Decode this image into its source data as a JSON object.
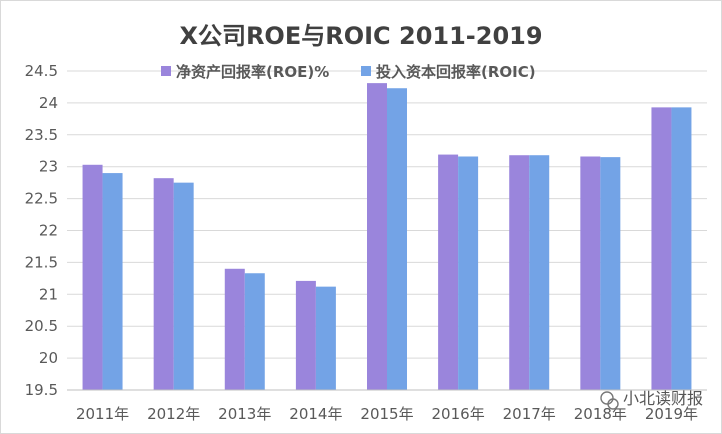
{
  "chart_data": {
    "type": "bar",
    "title": "X公司ROE与ROIC 2011-2019",
    "xlabel": "",
    "ylabel": "",
    "categories": [
      "2011年",
      "2012年",
      "2013年",
      "2014年",
      "2015年",
      "2016年",
      "2017年",
      "2018年",
      "2019年"
    ],
    "series": [
      {
        "name": "净资产回报率(ROE)%",
        "color": "#9a85dc",
        "values": [
          23.03,
          22.82,
          21.4,
          21.21,
          24.31,
          23.19,
          23.18,
          23.16,
          23.93
        ]
      },
      {
        "name": "投入资本回报率(ROIC)",
        "color": "#73a3e6",
        "values": [
          22.9,
          22.75,
          21.33,
          21.12,
          24.23,
          23.16,
          23.18,
          23.15,
          23.93
        ]
      }
    ],
    "ylim": [
      19.5,
      24.5
    ],
    "yticks": [
      "19.5",
      "20",
      "20.5",
      "21",
      "21.5",
      "22",
      "22.5",
      "23",
      "23.5",
      "24",
      "24.5"
    ],
    "grid": true,
    "legend_position": "top-center"
  },
  "watermark": {
    "text": "小北读财报",
    "icon": "wechat-logo-icon"
  }
}
